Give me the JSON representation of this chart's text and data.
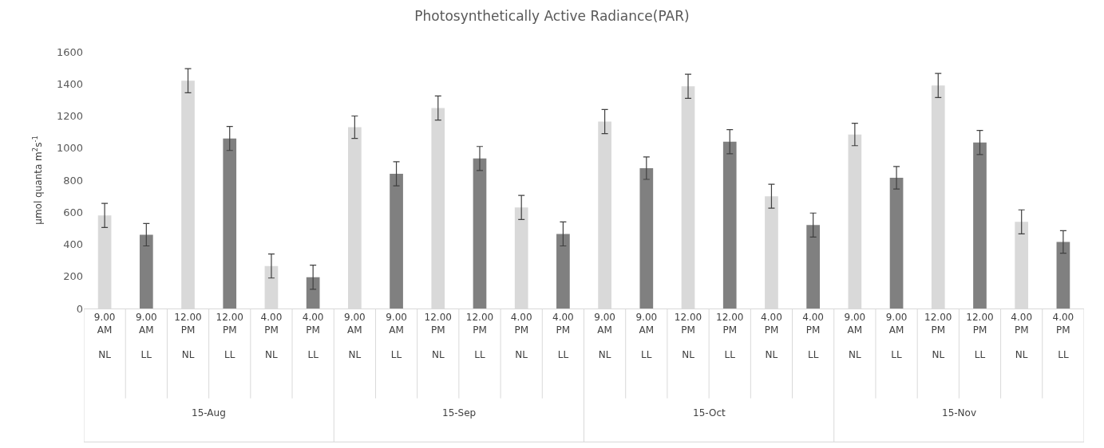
{
  "chart_data": {
    "type": "bar",
    "title": "Photosynthetically Active Radiance(PAR)",
    "ylabel": "μmol quanta m$^{2}$s$^{-1}$",
    "categories": [
      "9.00\nAM\n\nNL",
      "9.00\nAM\n\nLL",
      "12.00\nPM\n\nNL",
      "12.00\nPM\n\nLL",
      "4.00\nPM\n\nNL",
      "4.00\nPM\n\nLL",
      "9.00\nAM\n\nNL",
      "9.00\nAM\n\nLL",
      "12.00\nPM\n\nNL",
      "12.00\nPM\n\nLL",
      "4.00\nPM\n\nNL",
      "4.00\nPM\n\nLL",
      "9.00\nAM\n\nNL",
      "9.00\nAM\n\nLL",
      "12.00\nPM\n\nNL",
      "12.00\nPM\n\nLL",
      "4.00\nPM\n\nNL",
      "4.00\nPM\n\nLL",
      "9.00\nAM\n\nNL",
      "9.00\nAM\n\nLL",
      "12.00\nPM\n\nNL",
      "12.00\nPM\n\nLL",
      "4.00\nPM\n\nNL",
      "4.00\nPM\n\nLL"
    ],
    "values": [
      580,
      460,
      1420,
      1060,
      265,
      195,
      1130,
      840,
      1250,
      935,
      630,
      465,
      1165,
      875,
      1385,
      1040,
      700,
      520,
      1085,
      815,
      1390,
      1035,
      540,
      415
    ],
    "errors": [
      75,
      70,
      75,
      75,
      75,
      75,
      70,
      75,
      75,
      75,
      75,
      75,
      75,
      70,
      75,
      75,
      75,
      75,
      70,
      70,
      75,
      75,
      75,
      70
    ],
    "colors": [
      "#d9d9d9",
      "#808080",
      "#d9d9d9",
      "#808080",
      "#d9d9d9",
      "#808080",
      "#d9d9d9",
      "#808080",
      "#d9d9d9",
      "#808080",
      "#d9d9d9",
      "#808080",
      "#d9d9d9",
      "#808080",
      "#d9d9d9",
      "#808080",
      "#d9d9d9",
      "#808080",
      "#d9d9d9",
      "#808080",
      "#d9d9d9",
      "#808080",
      "#d9d9d9",
      "#808080"
    ],
    "annotations": [
      "15-Aug",
      "15-Sep",
      "15-Oct",
      "15-Nov"
    ],
    "ylim": [
      0,
      1600
    ],
    "yticks": [
      0,
      200,
      400,
      600,
      800,
      1000,
      1200,
      1400,
      1600
    ]
  }
}
